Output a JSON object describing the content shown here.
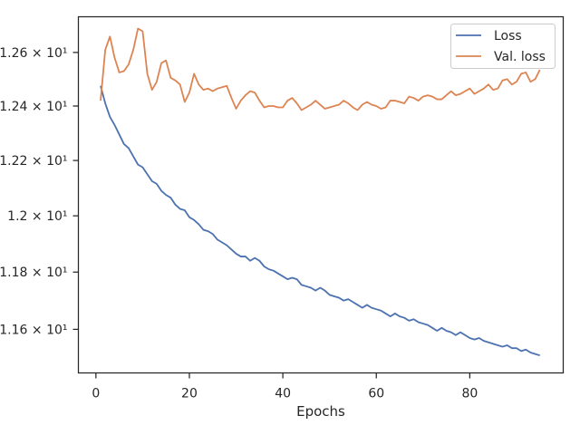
{
  "chart_data": {
    "type": "line",
    "title": "",
    "xlabel": "Epochs",
    "ylabel": "",
    "xlim": [
      -3.75,
      100
    ],
    "ylim": [
      11.45,
      12.735
    ],
    "yscale": "log",
    "grid": false,
    "legend_placement": "top-right",
    "xticks": [
      0,
      20,
      40,
      60,
      80
    ],
    "xtick_labels": [
      "0",
      "20",
      "40",
      "60",
      "80"
    ],
    "yticks": [
      11.6,
      11.8,
      12.0,
      12.2,
      12.4,
      12.6
    ],
    "ytick_labels": [
      "1.16 × 10¹",
      "1.18 × 10¹",
      "1.2 × 10¹",
      "1.22 × 10¹",
      "1.24 × 10¹",
      "1.26 × 10¹"
    ],
    "x": [
      1,
      2,
      3,
      4,
      5,
      6,
      7,
      8,
      9,
      10,
      11,
      12,
      13,
      14,
      15,
      16,
      17,
      18,
      19,
      20,
      21,
      22,
      23,
      24,
      25,
      26,
      27,
      28,
      29,
      30,
      31,
      32,
      33,
      34,
      35,
      36,
      37,
      38,
      39,
      40,
      41,
      42,
      43,
      44,
      45,
      46,
      47,
      48,
      49,
      50,
      51,
      52,
      53,
      54,
      55,
      56,
      57,
      58,
      59,
      60,
      61,
      62,
      63,
      64,
      65,
      66,
      67,
      68,
      69,
      70,
      71,
      72,
      73,
      74,
      75,
      76,
      77,
      78,
      79,
      80,
      81,
      82,
      83,
      84,
      85,
      86,
      87,
      88,
      89,
      90,
      91,
      92,
      93,
      94,
      95
    ],
    "series": [
      {
        "name": "Loss",
        "color": "#4c72b0",
        "values": [
          12.475,
          12.41,
          12.36,
          12.33,
          12.295,
          12.26,
          12.245,
          12.215,
          12.185,
          12.175,
          12.15,
          12.125,
          12.115,
          12.09,
          12.075,
          12.065,
          12.04,
          12.025,
          12.02,
          11.995,
          11.985,
          11.97,
          11.95,
          11.945,
          11.935,
          11.915,
          11.905,
          11.895,
          11.88,
          11.865,
          11.855,
          11.855,
          11.84,
          11.85,
          11.84,
          11.82,
          11.81,
          11.805,
          11.795,
          11.785,
          11.775,
          11.78,
          11.775,
          11.755,
          11.75,
          11.745,
          11.735,
          11.745,
          11.735,
          11.72,
          11.715,
          11.71,
          11.7,
          11.705,
          11.695,
          11.685,
          11.675,
          11.685,
          11.675,
          11.67,
          11.665,
          11.655,
          11.645,
          11.655,
          11.645,
          11.64,
          11.63,
          11.635,
          11.625,
          11.62,
          11.615,
          11.605,
          11.595,
          11.605,
          11.595,
          11.59,
          11.58,
          11.59,
          11.58,
          11.57,
          11.565,
          11.57,
          11.56,
          11.555,
          11.55,
          11.545,
          11.54,
          11.545,
          11.535,
          11.535,
          11.525,
          11.53,
          11.52,
          11.515,
          11.51
        ]
      },
      {
        "name": "Val. loss",
        "color": "#dd8452",
        "values": [
          12.42,
          12.61,
          12.66,
          12.58,
          12.525,
          12.53,
          12.555,
          12.61,
          12.69,
          12.68,
          12.52,
          12.46,
          12.49,
          12.56,
          12.57,
          12.505,
          12.495,
          12.48,
          12.415,
          12.45,
          12.52,
          12.48,
          12.46,
          12.465,
          12.455,
          12.465,
          12.47,
          12.475,
          12.43,
          12.39,
          12.42,
          12.44,
          12.455,
          12.45,
          12.42,
          12.395,
          12.4,
          12.4,
          12.395,
          12.395,
          12.42,
          12.43,
          12.41,
          12.385,
          12.395,
          12.405,
          12.42,
          12.405,
          12.39,
          12.395,
          12.4,
          12.405,
          12.42,
          12.41,
          12.395,
          12.385,
          12.405,
          12.415,
          12.405,
          12.4,
          12.39,
          12.395,
          12.42,
          12.42,
          12.415,
          12.41,
          12.435,
          12.43,
          12.42,
          12.435,
          12.44,
          12.435,
          12.425,
          12.425,
          12.44,
          12.455,
          12.44,
          12.445,
          12.455,
          12.465,
          12.445,
          12.455,
          12.465,
          12.48,
          12.46,
          12.465,
          12.495,
          12.5,
          12.48,
          12.49,
          12.52,
          12.525,
          12.49,
          12.5,
          12.535
        ]
      }
    ]
  }
}
